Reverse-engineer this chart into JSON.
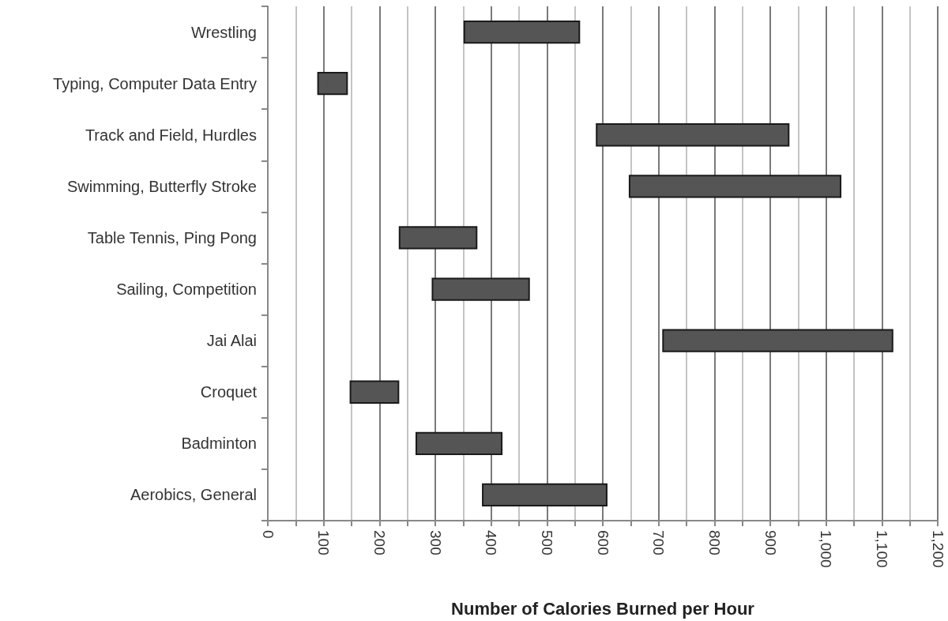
{
  "chart_data": {
    "type": "bar",
    "orientation": "horizontal",
    "xlabel": "Number of Calories Burned per Hour",
    "categories": [
      "Wrestling",
      "Typing, Computer Data Entry",
      "Track and Field, Hurdles",
      "Swimming, Butterfly Stroke",
      "Table Tennis, Ping Pong",
      "Sailing, Competition",
      "Jai Alai",
      "Croquet",
      "Badminton",
      "Aerobics, General"
    ],
    "base": [
      352,
      90,
      589,
      648,
      236,
      295,
      708,
      148,
      266,
      385
    ],
    "values": [
      206,
      52,
      344,
      378,
      138,
      173,
      411,
      86,
      153,
      222
    ],
    "color": "#555555",
    "xlim": [
      0,
      1200
    ],
    "xticks": [
      0,
      {
        "value": 50,
        "label": null
      },
      100,
      {
        "value": 150,
        "label": null
      },
      200,
      {
        "value": 250,
        "label": null
      },
      300,
      {
        "value": 350,
        "label": null
      },
      400,
      {
        "value": 450,
        "label": null
      },
      500,
      {
        "value": 550,
        "label": null
      },
      600,
      {
        "value": 650,
        "label": null
      },
      700,
      {
        "value": 750,
        "label": null
      },
      800,
      {
        "value": 850,
        "label": null
      },
      900,
      {
        "value": 950,
        "label": null
      },
      {
        "value": 1000,
        "label": "1,000"
      },
      {
        "value": 1050,
        "label": null
      },
      {
        "value": 1100,
        "label": "1,100"
      },
      {
        "value": 1150,
        "label": null
      },
      {
        "value": 1200,
        "label": "1,200"
      }
    ],
    "grid": "x"
  }
}
